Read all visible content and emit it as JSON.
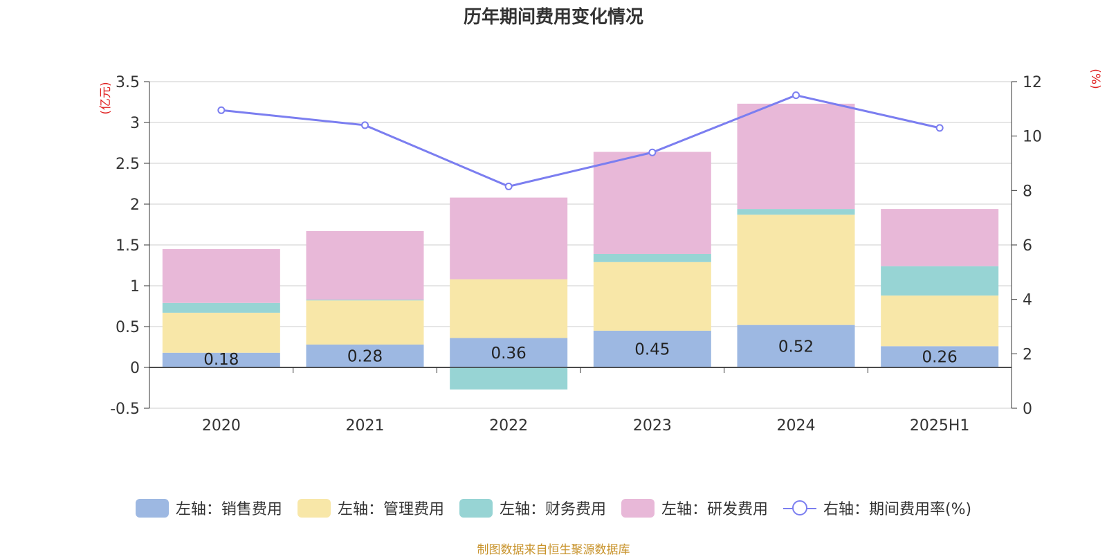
{
  "chart_data": {
    "type": "bar",
    "title": "历年期间费用变化情况",
    "categories": [
      "2020",
      "2021",
      "2022",
      "2023",
      "2024",
      "2025H1"
    ],
    "left_axis_unit": "(亿元)",
    "right_axis_unit": "(%)",
    "ylim_left": [
      -0.5,
      3.5
    ],
    "yticks_left": [
      "3.5",
      "3",
      "2.5",
      "2",
      "1.5",
      "1",
      "0.5",
      "0",
      "-0.5"
    ],
    "ylim_right": [
      0,
      12
    ],
    "yticks_right": [
      "12",
      "10",
      "8",
      "6",
      "4",
      "2",
      "0"
    ],
    "grid": true,
    "legend_position": "bottom",
    "series": [
      {
        "name": "左轴：销售费用",
        "type": "bar",
        "axis": "left",
        "color": "#9db8e2",
        "values": [
          0.18,
          0.28,
          0.36,
          0.45,
          0.52,
          0.26
        ],
        "labels": [
          "0.18",
          "0.28",
          "0.36",
          "0.45",
          "0.52",
          "0.26"
        ]
      },
      {
        "name": "左轴：管理费用",
        "type": "bar",
        "axis": "left",
        "color": "#f8e7a8",
        "values": [
          0.49,
          0.54,
          0.72,
          0.84,
          1.35,
          0.62
        ]
      },
      {
        "name": "左轴：财务费用",
        "type": "bar",
        "axis": "left",
        "color": "#97d4d4",
        "values": [
          0.12,
          0.01,
          -0.27,
          0.1,
          0.07,
          0.36
        ]
      },
      {
        "name": "左轴：研发费用",
        "type": "bar",
        "axis": "left",
        "color": "#e8b8d8",
        "values": [
          0.66,
          0.84,
          1.0,
          1.25,
          1.29,
          0.7
        ]
      },
      {
        "name": "右轴：期间费用率(%)",
        "type": "line",
        "axis": "right",
        "color": "#7b7ef0",
        "values": [
          10.95,
          10.4,
          8.15,
          9.4,
          11.5,
          10.3
        ]
      }
    ]
  },
  "source_note": "制图数据来自恒生聚源数据库"
}
